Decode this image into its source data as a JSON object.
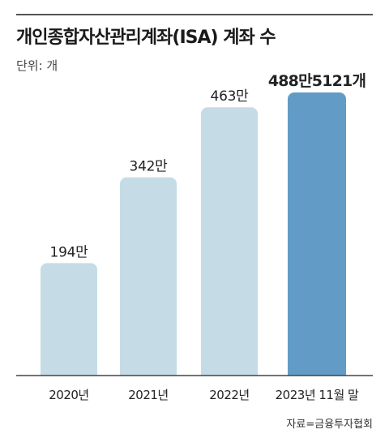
{
  "header": {
    "title": "개인종합자산관리계좌(ISA) 계좌 수",
    "unit": "단위: 개"
  },
  "footer": {
    "source": "자료=금융투자협회"
  },
  "colors": {
    "bar_past": "#c5dce6",
    "bar_latest": "#629cc6",
    "baseline": "#444444"
  },
  "chart_data": {
    "type": "bar",
    "categories": [
      "2020년",
      "2021년",
      "2022년",
      "2023년 11월 말"
    ],
    "values": [
      1940000,
      3420000,
      4630000,
      4885121
    ],
    "data_labels": [
      "194만",
      "342만",
      "463만",
      "488만5121개"
    ],
    "title": "개인종합자산관리계좌(ISA) 계좌 수",
    "xlabel": "",
    "ylabel": "",
    "ylim": [
      0,
      4885121
    ],
    "grid": false,
    "legend": "none"
  }
}
